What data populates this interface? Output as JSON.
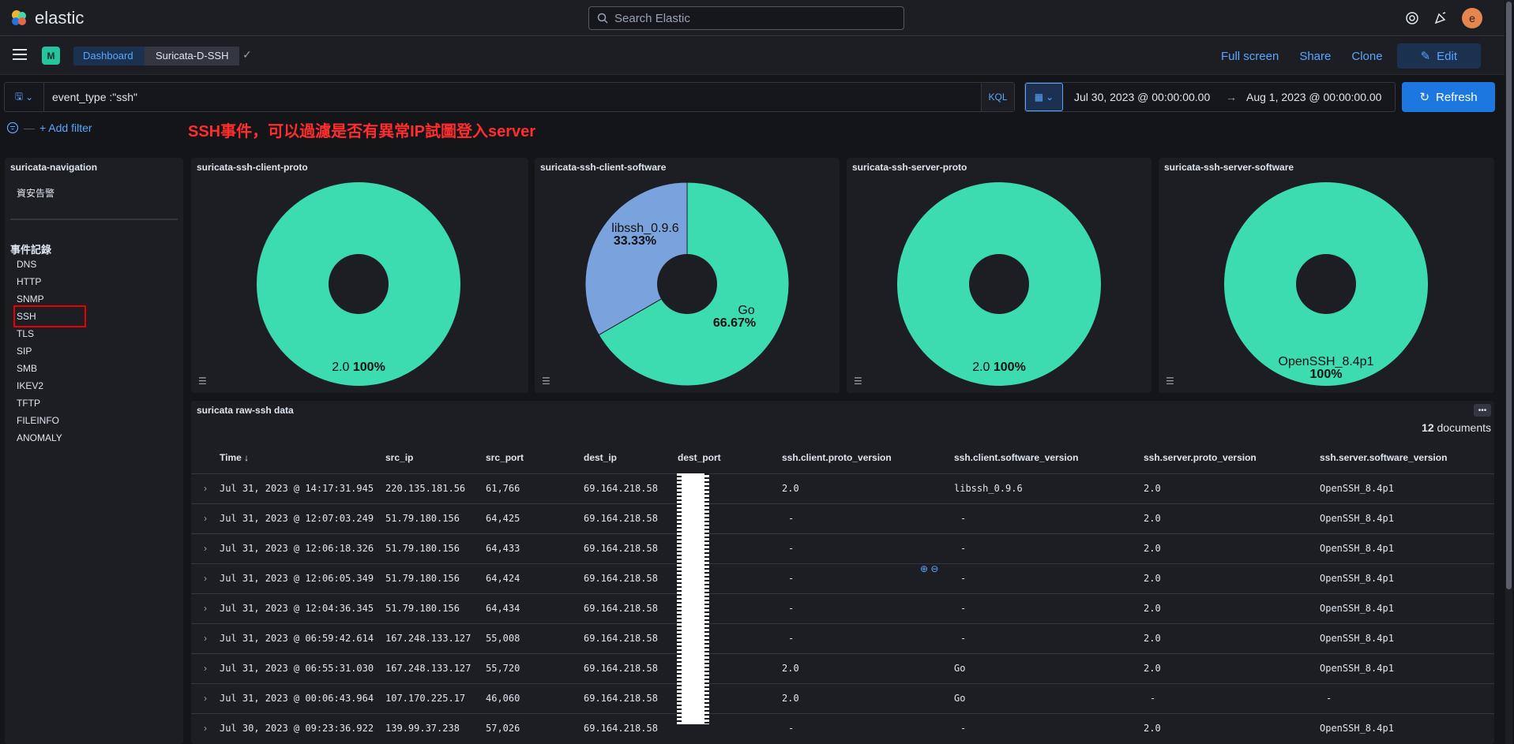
{
  "app": {
    "brand": "elastic",
    "avatar_letter": "e"
  },
  "search": {
    "placeholder": "Search Elastic"
  },
  "breadcrumbs": {
    "space": "M",
    "dashboard": "Dashboard",
    "current": "Suricata-D-SSH"
  },
  "actions": {
    "full_screen": "Full screen",
    "share": "Share",
    "clone": "Clone",
    "edit": "Edit"
  },
  "query": {
    "text": "event_type :\"ssh\"",
    "language": "KQL"
  },
  "time": {
    "start": "Jul 30, 2023 @ 00:00:00.00",
    "arrow": "→",
    "end": "Aug 1, 2023 @ 00:00:00.00",
    "refresh": "Refresh"
  },
  "filter": {
    "add_label": "+ Add filter"
  },
  "annotation": "SSH事件，可以過濾是否有異常IP試圖登入server",
  "nav": {
    "title": "suricata-navigation",
    "top_item": "資安告警",
    "section": "事件記錄",
    "items": [
      "DNS",
      "HTTP",
      "SNMP",
      "SSH",
      "TLS",
      "SIP",
      "SMB",
      "IKEV2",
      "TFTP",
      "FILEINFO",
      "ANOMALY"
    ]
  },
  "colors": {
    "green": "#3ddbb0",
    "blue": "#7aa2dd",
    "accent": "#1d77e0",
    "annotation": "#ff2d2d"
  },
  "chart_data": [
    {
      "type": "pie",
      "title": "suricata-ssh-client-proto",
      "slices": [
        {
          "label": "2.0",
          "value": 100,
          "pct": "100%"
        }
      ]
    },
    {
      "type": "pie",
      "title": "suricata-ssh-client-software",
      "slices": [
        {
          "label": "Go",
          "value": 66.67,
          "pct": "66.67%"
        },
        {
          "label": "libssh_0.9.6",
          "value": 33.33,
          "pct": "33.33%"
        }
      ]
    },
    {
      "type": "pie",
      "title": "suricata-ssh-server-proto",
      "slices": [
        {
          "label": "2.0",
          "value": 100,
          "pct": "100%"
        }
      ]
    },
    {
      "type": "pie",
      "title": "suricata-ssh-server-software",
      "slices": [
        {
          "label": "OpenSSH_8.4p1",
          "value": 100,
          "pct": "100%"
        }
      ]
    }
  ],
  "table": {
    "title": "suricata raw-ssh data",
    "count": "12",
    "count_label": "documents",
    "columns": [
      "Time ↓",
      "src_ip",
      "src_port",
      "dest_ip",
      "dest_port",
      "ssh.client.proto_version",
      "ssh.client.software_version",
      "ssh.server.proto_version",
      "ssh.server.software_version"
    ],
    "rows": [
      [
        "Jul 31, 2023 @ 14:17:31.945",
        "220.135.181.56",
        "61,766",
        "69.164.218.58",
        "",
        "2.0",
        "libssh_0.9.6",
        "2.0",
        "OpenSSH_8.4p1"
      ],
      [
        "Jul 31, 2023 @ 12:07:03.249",
        "51.79.180.156",
        "64,425",
        "69.164.218.58",
        "",
        "-",
        "-",
        "2.0",
        "OpenSSH_8.4p1"
      ],
      [
        "Jul 31, 2023 @ 12:06:18.326",
        "51.79.180.156",
        "64,433",
        "69.164.218.58",
        "",
        "-",
        "-",
        "2.0",
        "OpenSSH_8.4p1"
      ],
      [
        "Jul 31, 2023 @ 12:06:05.349",
        "51.79.180.156",
        "64,424",
        "69.164.218.58",
        "",
        "-",
        "-",
        "2.0",
        "OpenSSH_8.4p1"
      ],
      [
        "Jul 31, 2023 @ 12:04:36.345",
        "51.79.180.156",
        "64,434",
        "69.164.218.58",
        "",
        "-",
        "-",
        "2.0",
        "OpenSSH_8.4p1"
      ],
      [
        "Jul 31, 2023 @ 06:59:42.614",
        "167.248.133.127",
        "55,008",
        "69.164.218.58",
        "",
        "-",
        "-",
        "2.0",
        "OpenSSH_8.4p1"
      ],
      [
        "Jul 31, 2023 @ 06:55:31.030",
        "167.248.133.127",
        "55,720",
        "69.164.218.58",
        "",
        "2.0",
        "Go",
        "2.0",
        "OpenSSH_8.4p1"
      ],
      [
        "Jul 31, 2023 @ 00:06:43.964",
        "107.170.225.17",
        "46,060",
        "69.164.218.58",
        "",
        "2.0",
        "Go",
        "-",
        "-"
      ],
      [
        "Jul 30, 2023 @ 09:23:36.922",
        "139.99.37.238",
        "57,026",
        "69.164.218.58",
        "",
        "-",
        "-",
        "2.0",
        "OpenSSH_8.4p1"
      ]
    ]
  }
}
